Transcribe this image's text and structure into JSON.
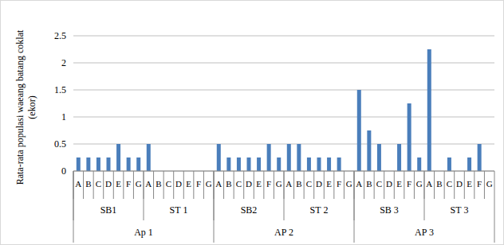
{
  "chart_data": {
    "type": "bar",
    "y_label": "Rata-rata populasi waeang batang coklat (ekor)",
    "categories": [
      "A",
      "B",
      "C",
      "D",
      "E",
      "F",
      "G",
      "A",
      "B",
      "C",
      "D",
      "E",
      "F",
      "G",
      "A",
      "B",
      "C",
      "D",
      "E",
      "F",
      "G",
      "A",
      "B",
      "C",
      "D",
      "E",
      "F",
      "G",
      "A",
      "B",
      "C",
      "D",
      "E",
      "F",
      "G",
      "A",
      "B",
      "C",
      "D",
      "E",
      "F",
      "G"
    ],
    "values": [
      0.25,
      0.25,
      0.25,
      0.25,
      0.5,
      0.25,
      0.25,
      0.5,
      0,
      0,
      0,
      0,
      0,
      0,
      0.5,
      0.25,
      0.25,
      0.25,
      0.25,
      0.5,
      0.25,
      0.5,
      0.5,
      0.25,
      0.25,
      0.25,
      0.25,
      0,
      1.5,
      0.75,
      0.5,
      0,
      0.5,
      1.25,
      0.25,
      2.25,
      0,
      0.25,
      0,
      0.25,
      0.5,
      0
    ],
    "groups": [
      {
        "label": "SB1",
        "size": 7
      },
      {
        "label": "ST 1",
        "size": 7
      },
      {
        "label": "SB2",
        "size": 7
      },
      {
        "label": "ST 2",
        "size": 7
      },
      {
        "label": "SB 3",
        "size": 7
      },
      {
        "label": "ST 3",
        "size": 7
      }
    ],
    "supergroups": [
      {
        "label": "Ap 1",
        "size": 2
      },
      {
        "label": "AP 2",
        "size": 2
      },
      {
        "label": "AP 3",
        "size": 2
      }
    ],
    "color": "#4a7ebb",
    "ylim": [
      0,
      2.5
    ],
    "yticks": [
      0,
      {
        "value": 0.5,
        "label": "0.5"
      },
      1,
      {
        "value": 1.5,
        "label": "1.5"
      },
      2,
      {
        "value": 2.5,
        "label": "2.5"
      }
    ],
    "grid": true
  }
}
